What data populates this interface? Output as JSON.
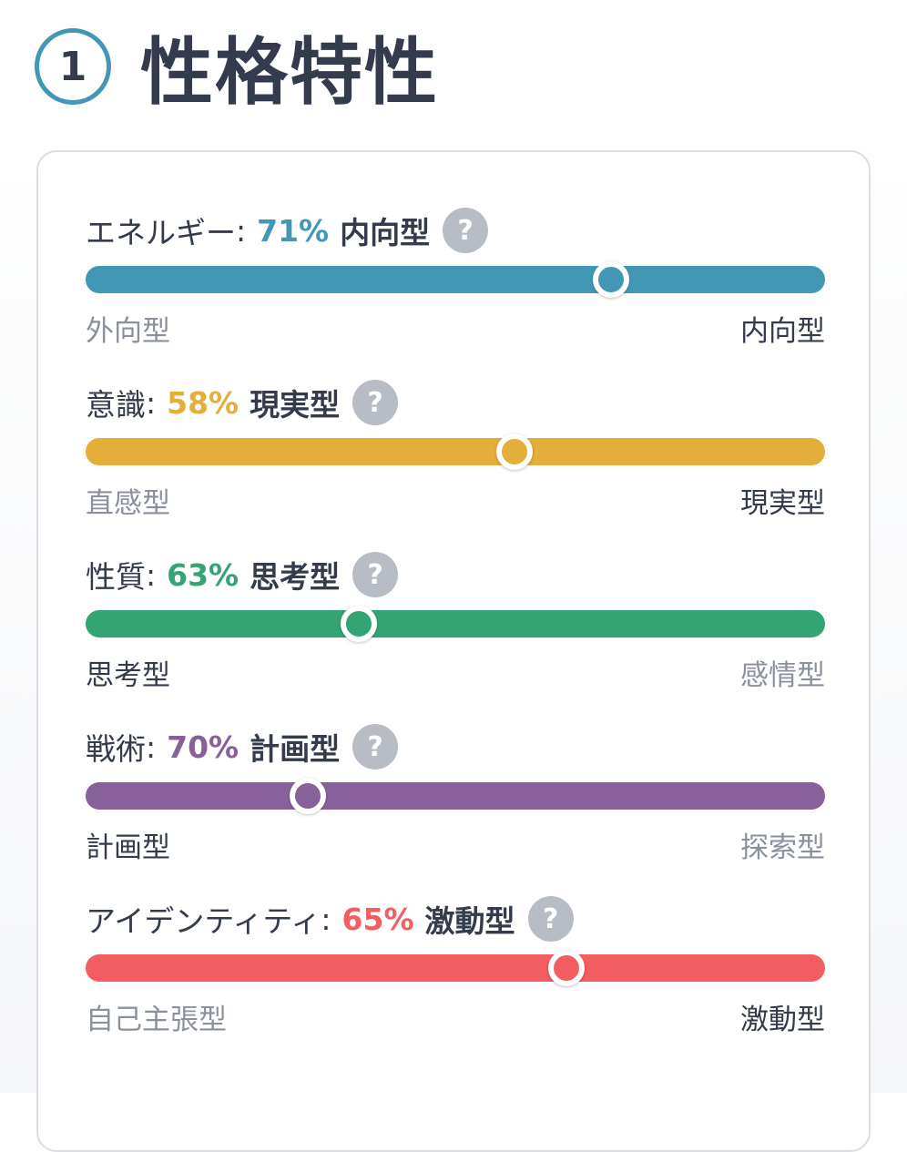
{
  "header": {
    "step_number": "1",
    "title": "性格特性"
  },
  "traits": [
    {
      "name": "エネルギー",
      "percent": "71%",
      "result": "内向型",
      "color": "#4298b4",
      "position": 0.71,
      "left_label": "外向型",
      "right_label": "内向型",
      "active_side": "right"
    },
    {
      "name": "意識",
      "percent": "58%",
      "result": "現実型",
      "color": "#e4ae3a",
      "position": 0.58,
      "left_label": "直感型",
      "right_label": "現実型",
      "active_side": "right"
    },
    {
      "name": "性質",
      "percent": "63%",
      "result": "思考型",
      "color": "#33a474",
      "position": 0.37,
      "left_label": "思考型",
      "right_label": "感情型",
      "active_side": "left"
    },
    {
      "name": "戦術",
      "percent": "70%",
      "result": "計画型",
      "color": "#88619a",
      "position": 0.3,
      "left_label": "計画型",
      "right_label": "探索型",
      "active_side": "left"
    },
    {
      "name": "アイデンティティ",
      "percent": "65%",
      "result": "激動型",
      "color": "#f25e62",
      "position": 0.65,
      "left_label": "自己主張型",
      "right_label": "激動型",
      "active_side": "right"
    }
  ],
  "help_icon": "question-mark-icon",
  "help_glyph": "?"
}
